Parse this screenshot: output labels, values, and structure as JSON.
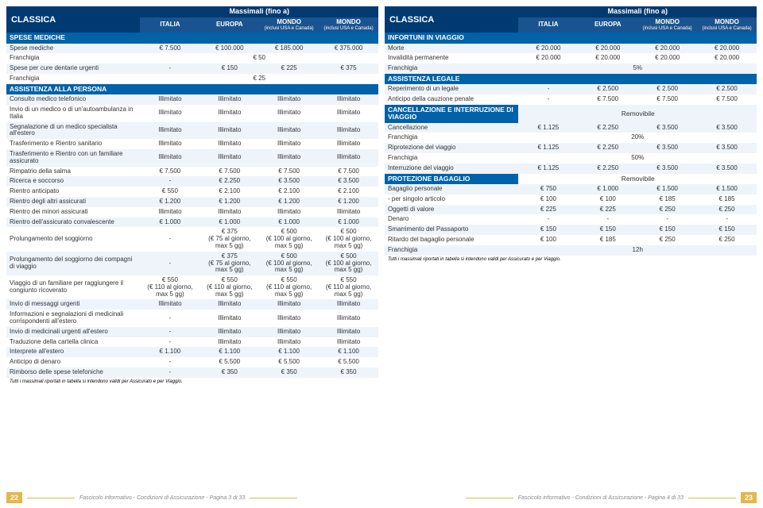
{
  "colors": {
    "headerBg": "#003a70",
    "headerBg2": "#1a5490",
    "sectionBg": "#0062a8",
    "rowOdd": "#eef4fa",
    "rowEven": "#ffffff",
    "accent": "#e2b84a",
    "text": "#333333"
  },
  "header": {
    "super": "Massimali (fino a)",
    "plan": "CLASSICA",
    "cols": [
      "ITALIA",
      "EUROPA",
      "MONDO",
      "MONDO"
    ],
    "sub": [
      "",
      "",
      "(inclusi USA e Canada)",
      "(inclusi USA e Canada)"
    ]
  },
  "left": [
    {
      "t": "section",
      "label": "SPESE MEDICHE"
    },
    {
      "t": "row",
      "label": "Spese mediche",
      "v": [
        "€ 7.500",
        "€ 100.000",
        "€ 185.000",
        "€ 375.000"
      ]
    },
    {
      "t": "rowspan",
      "label": "Franchigia",
      "v": "€ 50",
      "span": 4
    },
    {
      "t": "row",
      "label": "Spese per cure dentarie urgenti",
      "v": [
        "-",
        "€ 150",
        "€ 225",
        "€ 375"
      ]
    },
    {
      "t": "rowspan",
      "label": "Franchigia",
      "v": "€ 25",
      "span": 4
    },
    {
      "t": "section",
      "label": "ASSISTENZA ALLA PERSONA"
    },
    {
      "t": "row",
      "label": "Consulto medico telefonico",
      "v": [
        "Illimitato",
        "Illimitato",
        "Illimitato",
        "Illimitato"
      ]
    },
    {
      "t": "row",
      "label": "Invio di un medico o di un'autoambulanza in Italia",
      "v": [
        "Illimitato",
        "Illimitato",
        "Illimitato",
        "Illimitato"
      ]
    },
    {
      "t": "row",
      "label": "Segnalazione di un medico specialista all'estero",
      "v": [
        "Illimitato",
        "Illimitato",
        "Illimitato",
        "Illimitato"
      ]
    },
    {
      "t": "row",
      "label": "Trasferimento e Rientro sanitario",
      "v": [
        "Illimitato",
        "Illimitato",
        "Illimitato",
        "Illimitato"
      ]
    },
    {
      "t": "row",
      "label": "Trasferimento e Rientro con un familiare assicurato",
      "v": [
        "Illimitato",
        "Illimitato",
        "Illimitato",
        "Illimitato"
      ]
    },
    {
      "t": "row",
      "label": "Rimpatrio della salma",
      "v": [
        "€ 7.500",
        "€ 7.500",
        "€ 7.500",
        "€ 7.500"
      ]
    },
    {
      "t": "row",
      "label": "Ricerca e soccorso",
      "v": [
        "-",
        "€ 2.250",
        "€ 3.500",
        "€ 3.500"
      ]
    },
    {
      "t": "row",
      "label": "Rientro anticipato",
      "v": [
        "€ 550",
        "€ 2.100",
        "€ 2.100",
        "€ 2.100"
      ]
    },
    {
      "t": "row",
      "label": "Rientro degli altri assicurati",
      "v": [
        "€ 1.200",
        "€ 1.200",
        "€ 1.200",
        "€ 1.200"
      ]
    },
    {
      "t": "row",
      "label": "Rientro dei minori assicurati",
      "v": [
        "Illimitato",
        "Illimitato",
        "Illimitato",
        "Illimitato"
      ]
    },
    {
      "t": "row",
      "label": "Rientro dell'assicurato convalescente",
      "v": [
        "€ 1.000",
        "€ 1.000",
        "€ 1.000",
        "€ 1.000"
      ]
    },
    {
      "t": "row",
      "label": "Prolungamento del soggiorno",
      "v": [
        "-",
        "€ 375\n(€ 75 al giorno, max 5 gg)",
        "€ 500\n(€ 100 al giorno, max 5 gg)",
        "€ 500\n(€ 100 al giorno, max 5 gg)"
      ]
    },
    {
      "t": "row",
      "label": "Prolungamento del soggiorno dei compagni di viaggio",
      "v": [
        "-",
        "€ 375\n(€ 75 al giorno, max 5 gg)",
        "€ 500\n(€ 100 al giorno, max 5 gg)",
        "€ 500\n(€ 100 al giorno, max 5 gg)"
      ]
    },
    {
      "t": "row",
      "label": "Viaggio di un familiare per raggiungere il congiunto ricoverato",
      "v": [
        "€ 550\n(€ 110 al giorno, max 5 gg)",
        "€ 550\n(€ 110 al giorno, max 5 gg)",
        "€ 550\n(€ 110 al giorno, max 5 gg)",
        "€ 550\n(€ 110 al giorno, max 5 gg)"
      ]
    },
    {
      "t": "row",
      "label": "Invio di messaggi urgenti",
      "v": [
        "Illimitato",
        "Illimitato",
        "Illimitato",
        "Illimitato"
      ]
    },
    {
      "t": "row",
      "label": "Informazioni e segnalazioni di medicinali corrispondenti all'estero",
      "v": [
        "-",
        "Illimitato",
        "Illimitato",
        "Illimitato"
      ]
    },
    {
      "t": "row",
      "label": "Invio di medicinali urgenti all'estero",
      "v": [
        "-",
        "Illimitato",
        "Illimitato",
        "Illimitato"
      ]
    },
    {
      "t": "row",
      "label": "Traduzione della cartella clinica",
      "v": [
        "-",
        "Illimitato",
        "Illimitato",
        "Illimitato"
      ]
    },
    {
      "t": "row",
      "label": "Interprete all'estero",
      "v": [
        "€ 1.100",
        "€ 1.100",
        "€ 1.100",
        "€ 1.100"
      ]
    },
    {
      "t": "row",
      "label": "Anticipo di denaro",
      "v": [
        "-",
        "€ 5.500",
        "€ 5.500",
        "€ 5.500"
      ]
    },
    {
      "t": "row",
      "label": "Rimborso delle spese telefoniche",
      "v": [
        "-",
        "€ 350",
        "€ 350",
        "€ 350"
      ]
    }
  ],
  "right": [
    {
      "t": "section",
      "label": "INFORTUNI IN VIAGGIO"
    },
    {
      "t": "row",
      "label": "Morte",
      "v": [
        "€ 20.000",
        "€ 20.000",
        "€ 20.000",
        "€ 20.000"
      ]
    },
    {
      "t": "row",
      "label": "Invalidità permanente",
      "v": [
        "€ 20.000",
        "€ 20.000",
        "€ 20.000",
        "€ 20.000"
      ]
    },
    {
      "t": "rowspan",
      "label": "Franchigia",
      "v": "5%",
      "span": 4
    },
    {
      "t": "section",
      "label": "ASSISTENZA LEGALE"
    },
    {
      "t": "row",
      "label": "Reperimento di un legale",
      "v": [
        "-",
        "€ 2.500",
        "€ 2.500",
        "€ 2.500"
      ]
    },
    {
      "t": "row",
      "label": "Anticipo della cauzione penale",
      "v": [
        "-",
        "€ 7.500",
        "€ 7.500",
        "€ 7.500"
      ]
    },
    {
      "t": "section2",
      "label": "CANCELLAZIONE E INTERRUZIONE DI VIAGGIO",
      "v": "Removibile"
    },
    {
      "t": "row",
      "label": "Cancellazione",
      "v": [
        "€ 1.125",
        "€ 2.250",
        "€ 3.500",
        "€ 3.500"
      ]
    },
    {
      "t": "rowspan",
      "label": "Franchigia",
      "v": "20%",
      "span": 4
    },
    {
      "t": "row",
      "label": "Riprotezione del viaggio",
      "v": [
        "€ 1.125",
        "€ 2.250",
        "€ 3.500",
        "€ 3.500"
      ]
    },
    {
      "t": "rowspan",
      "label": "Franchigia",
      "v": "50%",
      "span": 4
    },
    {
      "t": "row",
      "label": "Interruzione del viaggio",
      "v": [
        "€ 1.125",
        "€ 2.250",
        "€ 3.500",
        "€ 3.500"
      ]
    },
    {
      "t": "section2",
      "label": "PROTEZIONE BAGAGLIO",
      "v": "Removibile"
    },
    {
      "t": "row",
      "label": "Bagaglio personale",
      "v": [
        "€ 750",
        "€ 1.000",
        "€ 1.500",
        "€ 1.500"
      ]
    },
    {
      "t": "row",
      "label": "- per singolo articolo",
      "v": [
        "€ 100",
        "€ 100",
        "€ 185",
        "€ 185"
      ]
    },
    {
      "t": "row",
      "label": "Oggetti di valore",
      "v": [
        "€ 225",
        "€ 225",
        "€ 250",
        "€ 250"
      ]
    },
    {
      "t": "row",
      "label": "Denaro",
      "v": [
        "-",
        "-",
        "-",
        "-"
      ]
    },
    {
      "t": "row",
      "label": "Smarrimento del Passaporto",
      "v": [
        "€ 150",
        "€ 150",
        "€ 150",
        "€ 150"
      ]
    },
    {
      "t": "row",
      "label": "Ritardo del bagaglio personale",
      "v": [
        "€ 100",
        "€ 185",
        "€ 250",
        "€ 250"
      ]
    },
    {
      "t": "rowspan",
      "label": "Franchigia",
      "v": "12h",
      "span": 4
    }
  ],
  "footnote": "Tutti i massimali riportati in tabella si intendono validi per Assicurato e per Viaggio.",
  "footer": {
    "leftNum": "22",
    "rightNum": "23",
    "leftTxt": "Fascicolo informativo - Condizioni di Assicurazione - Pagina 3 di 33",
    "rightTxt": "Fascicolo informativo - Condizioni di Assicurazione - Pagina 4 di 33"
  }
}
